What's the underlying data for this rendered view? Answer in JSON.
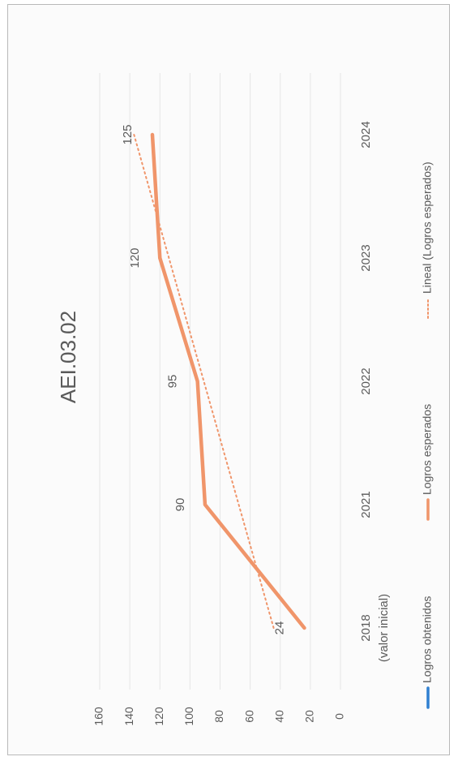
{
  "chart_data": {
    "type": "line",
    "orientation": "rotated 90deg (reads bottom-to-top)",
    "title": "AEI.03.02",
    "categories": [
      "2018\n(valor inicial)",
      "2021",
      "2022",
      "2023",
      "2024"
    ],
    "category_lines": [
      [
        "2018",
        "(valor inicial)"
      ],
      [
        "2021"
      ],
      [
        "2022"
      ],
      [
        "2023"
      ],
      [
        "2024"
      ]
    ],
    "yticks": [
      0,
      20,
      40,
      60,
      80,
      100,
      120,
      140,
      160
    ],
    "ylim": [
      0,
      160
    ],
    "series": [
      {
        "name": "Logros obtenidos",
        "values": [
          null,
          null,
          null,
          null,
          null
        ],
        "color": "#2f80d1"
      },
      {
        "name": "Logros esperados",
        "values": [
          24,
          90,
          95,
          120,
          125
        ],
        "color": "#f0956a",
        "data_labels": [
          "24",
          "90",
          "95",
          "120",
          "125"
        ]
      },
      {
        "name": "Lineal (Logros esperados)",
        "trendline_of": "Logros esperados",
        "style": "dotted",
        "color": "#f0956a"
      }
    ],
    "grid": true,
    "legend_position": "bottom"
  }
}
